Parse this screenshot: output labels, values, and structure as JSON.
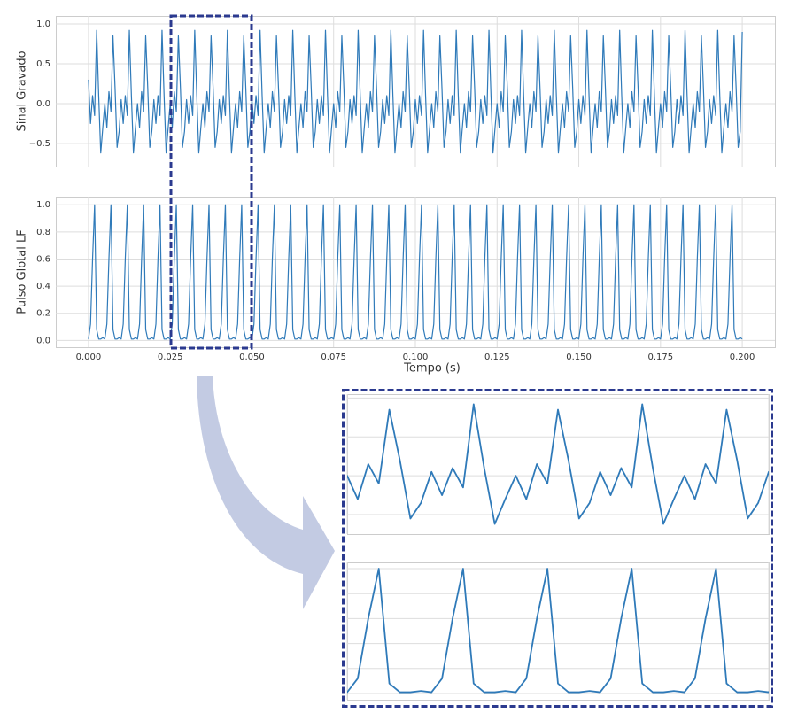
{
  "chart_data": {
    "type": "line",
    "grid": true,
    "xlabel": "Tempo (s)",
    "xlim": [
      -0.01,
      0.21
    ],
    "zoom_xlim": [
      0.025,
      0.05
    ],
    "xticks": [
      {
        "value": 0,
        "label": "0.000"
      },
      {
        "value": 0.025,
        "label": "0.025"
      },
      {
        "value": 0.05,
        "label": "0.050"
      },
      {
        "value": 0.075,
        "label": "0.075"
      },
      {
        "value": 0.1,
        "label": "0.100"
      },
      {
        "value": 0.125,
        "label": "0.125"
      },
      {
        "value": 0.15,
        "label": "0.150"
      },
      {
        "value": 0.175,
        "label": "0.175"
      },
      {
        "value": 0.2,
        "label": "0.200"
      }
    ],
    "x": [
      0,
      0.000625,
      0.00125,
      0.001875,
      0.0025,
      0.003125,
      0.00375,
      0.004375,
      0.005,
      0.005625,
      0.00625,
      0.006875,
      0.0075,
      0.008125,
      0.00875,
      0.009375,
      0.01,
      0.010625,
      0.01125,
      0.011875,
      0.0125,
      0.013125,
      0.01375,
      0.014375,
      0.015,
      0.015625,
      0.01625,
      0.016875,
      0.0175,
      0.018125,
      0.01875,
      0.019375,
      0.02,
      0.020625,
      0.02125,
      0.021875,
      0.0225,
      0.023125,
      0.02375,
      0.024375,
      0.025,
      0.025625,
      0.02625,
      0.026875,
      0.0275,
      0.028125,
      0.02875,
      0.029375,
      0.03,
      0.030625,
      0.03125,
      0.031875,
      0.0325,
      0.033125,
      0.03375,
      0.034375,
      0.035,
      0.035625,
      0.03625,
      0.036875,
      0.0375,
      0.038125,
      0.03875,
      0.039375,
      0.04,
      0.040625,
      0.04125,
      0.041875,
      0.0425,
      0.043125,
      0.04375,
      0.044375,
      0.045,
      0.045625,
      0.04625,
      0.046875,
      0.0475,
      0.048125,
      0.04875,
      0.049375,
      0.05,
      0.050625,
      0.05125,
      0.051875,
      0.0525,
      0.053125,
      0.05375,
      0.054375,
      0.055,
      0.055625,
      0.05625,
      0.056875,
      0.0575,
      0.058125,
      0.05875,
      0.059375,
      0.06,
      0.060625,
      0.06125,
      0.061875,
      0.0625,
      0.063125,
      0.06375,
      0.064375,
      0.065,
      0.065625,
      0.06625,
      0.066875,
      0.0675,
      0.068125,
      0.06875,
      0.069375,
      0.07,
      0.070625,
      0.07125,
      0.071875,
      0.0725,
      0.073125,
      0.07375,
      0.074375,
      0.075,
      0.075625,
      0.07625,
      0.076875,
      0.0775,
      0.078125,
      0.07875,
      0.079375,
      0.08,
      0.080625,
      0.08125,
      0.081875,
      0.0825,
      0.083125,
      0.08375,
      0.084375,
      0.085,
      0.085625,
      0.08625,
      0.086875,
      0.0875,
      0.088125,
      0.08875,
      0.089375,
      0.09,
      0.090625,
      0.09125,
      0.091875,
      0.0925,
      0.093125,
      0.09375,
      0.094375,
      0.095,
      0.095625,
      0.09625,
      0.096875,
      0.0975,
      0.098125,
      0.09875,
      0.099375,
      0.1,
      0.100625,
      0.10125,
      0.101875,
      0.1025,
      0.103125,
      0.10375,
      0.104375,
      0.105,
      0.105625,
      0.10625,
      0.106875,
      0.1075,
      0.108125,
      0.10875,
      0.109375,
      0.11,
      0.110625,
      0.11125,
      0.111875,
      0.1125,
      0.113125,
      0.11375,
      0.114375,
      0.115,
      0.115625,
      0.11625,
      0.116875,
      0.1175,
      0.118125,
      0.11875,
      0.119375,
      0.12,
      0.120625,
      0.12125,
      0.121875,
      0.1225,
      0.123125,
      0.12375,
      0.124375,
      0.125,
      0.125625,
      0.12625,
      0.126875,
      0.1275,
      0.128125,
      0.12875,
      0.129375,
      0.13,
      0.130625,
      0.13125,
      0.131875,
      0.1325,
      0.133125,
      0.13375,
      0.134375,
      0.135,
      0.135625,
      0.13625,
      0.136875,
      0.1375,
      0.138125,
      0.13875,
      0.139375,
      0.14,
      0.140625,
      0.14125,
      0.141875,
      0.1425,
      0.143125,
      0.14375,
      0.144375,
      0.145,
      0.145625,
      0.14625,
      0.146875,
      0.1475,
      0.148125,
      0.14875,
      0.149375,
      0.15,
      0.150625,
      0.15125,
      0.151875,
      0.1525,
      0.153125,
      0.15375,
      0.154375,
      0.155,
      0.155625,
      0.15625,
      0.156875,
      0.1575,
      0.158125,
      0.15875,
      0.159375,
      0.16,
      0.160625,
      0.16125,
      0.161875,
      0.1625,
      0.163125,
      0.16375,
      0.164375,
      0.165,
      0.165625,
      0.16625,
      0.166875,
      0.1675,
      0.168125,
      0.16875,
      0.169375,
      0.17,
      0.170625,
      0.17125,
      0.171875,
      0.1725,
      0.173125,
      0.17375,
      0.174375,
      0.175,
      0.175625,
      0.17625,
      0.176875,
      0.1775,
      0.178125,
      0.17875,
      0.179375,
      0.18,
      0.180625,
      0.18125,
      0.181875,
      0.1825,
      0.183125,
      0.18375,
      0.184375,
      0.185,
      0.185625,
      0.18625,
      0.186875,
      0.1875,
      0.188125,
      0.18875,
      0.189375,
      0.19,
      0.190625,
      0.19125,
      0.191875,
      0.1925,
      0.193125,
      0.19375,
      0.194375,
      0.195,
      0.195625,
      0.19625,
      0.196875,
      0.1975,
      0.198125,
      0.19875,
      0.199375,
      0.2
    ],
    "panels": [
      {
        "ylabel": "Sinal Gravado",
        "ylim": [
          -0.79,
          1.1
        ],
        "zoom_ylim": [
          -0.75,
          1.05
        ],
        "yticks": [
          {
            "value": -0.5,
            "label": "−0.5"
          },
          {
            "value": 0,
            "label": "0.0"
          },
          {
            "value": 0.5,
            "label": "0.5"
          },
          {
            "value": 1,
            "label": "1.0"
          }
        ],
        "series": [
          {
            "color": "#2f7ab9",
            "values": [
              0.3,
              -0.25,
              0.1,
              -0.15,
              0.92,
              0.1,
              -0.62,
              -0.3,
              0,
              -0.3,
              0.15,
              -0.1,
              0.85,
              0.2,
              -0.55,
              -0.35,
              0.05,
              -0.25,
              0.1,
              -0.15,
              0.92,
              0.1,
              -0.62,
              -0.3,
              0,
              -0.3,
              0.15,
              -0.1,
              0.85,
              0.2,
              -0.55,
              -0.35,
              0.05,
              -0.25,
              0.1,
              -0.15,
              0.92,
              0.1,
              -0.62,
              -0.3,
              0,
              -0.3,
              0.15,
              -0.1,
              0.85,
              0.2,
              -0.55,
              -0.35,
              0.05,
              -0.25,
              0.1,
              -0.15,
              0.92,
              0.1,
              -0.62,
              -0.3,
              0,
              -0.3,
              0.15,
              -0.1,
              0.85,
              0.2,
              -0.55,
              -0.35,
              0.05,
              -0.25,
              0.1,
              -0.15,
              0.92,
              0.1,
              -0.62,
              -0.3,
              0,
              -0.3,
              0.15,
              -0.1,
              0.85,
              0.2,
              -0.55,
              -0.35,
              0.05,
              -0.25,
              0.1,
              -0.15,
              0.92,
              0.1,
              -0.62,
              -0.3,
              0,
              -0.3,
              0.15,
              -0.1,
              0.85,
              0.2,
              -0.55,
              -0.35,
              0.05,
              -0.25,
              0.1,
              -0.15,
              0.92,
              0.1,
              -0.62,
              -0.3,
              0,
              -0.3,
              0.15,
              -0.1,
              0.85,
              0.2,
              -0.55,
              -0.35,
              0.05,
              -0.25,
              0.1,
              -0.15,
              0.92,
              0.1,
              -0.62,
              -0.3,
              0,
              -0.3,
              0.15,
              -0.1,
              0.85,
              0.2,
              -0.55,
              -0.35,
              0.05,
              -0.25,
              0.1,
              -0.15,
              0.92,
              0.1,
              -0.62,
              -0.3,
              0,
              -0.3,
              0.15,
              -0.1,
              0.85,
              0.2,
              -0.55,
              -0.35,
              0.05,
              -0.25,
              0.1,
              -0.15,
              0.92,
              0.1,
              -0.62,
              -0.3,
              0,
              -0.3,
              0.15,
              -0.1,
              0.85,
              0.2,
              -0.55,
              -0.35,
              0.05,
              -0.25,
              0.1,
              -0.15,
              0.92,
              0.1,
              -0.62,
              -0.3,
              0,
              -0.3,
              0.15,
              -0.1,
              0.85,
              0.2,
              -0.55,
              -0.35,
              0.05,
              -0.25,
              0.1,
              -0.15,
              0.92,
              0.1,
              -0.62,
              -0.3,
              0,
              -0.3,
              0.15,
              -0.1,
              0.85,
              0.2,
              -0.55,
              -0.35,
              0.05,
              -0.25,
              0.1,
              -0.15,
              0.92,
              0.1,
              -0.62,
              -0.3,
              0,
              -0.3,
              0.15,
              -0.1,
              0.85,
              0.2,
              -0.55,
              -0.35,
              0.05,
              -0.25,
              0.1,
              -0.15,
              0.92,
              0.1,
              -0.62,
              -0.3,
              0,
              -0.3,
              0.15,
              -0.1,
              0.85,
              0.2,
              -0.55,
              -0.35,
              0.05,
              -0.25,
              0.1,
              -0.15,
              0.92,
              0.1,
              -0.62,
              -0.3,
              0,
              -0.3,
              0.15,
              -0.1,
              0.85,
              0.2,
              -0.55,
              -0.35,
              0.05,
              -0.25,
              0.1,
              -0.15,
              0.92,
              0.1,
              -0.62,
              -0.3,
              0,
              -0.3,
              0.15,
              -0.1,
              0.85,
              0.2,
              -0.55,
              -0.35,
              0.05,
              -0.25,
              0.1,
              -0.15,
              0.92,
              0.1,
              -0.62,
              -0.3,
              0,
              -0.3,
              0.15,
              -0.1,
              0.85,
              0.2,
              -0.55,
              -0.35,
              0.05,
              -0.25,
              0.1,
              -0.15,
              0.92,
              0.1,
              -0.62,
              -0.3,
              0,
              -0.3,
              0.15,
              -0.1,
              0.85,
              0.2,
              -0.55,
              -0.35,
              0.05,
              -0.25,
              0.1,
              -0.15,
              0.92,
              0.1,
              -0.62,
              -0.3,
              0,
              -0.3,
              0.15,
              -0.1,
              0.85,
              0.2,
              -0.55,
              -0.35,
              0.05,
              -0.25,
              0.1,
              -0.15,
              0.92,
              0.1,
              -0.62,
              -0.3,
              0,
              -0.3,
              0.15,
              -0.1,
              0.85,
              0.2,
              -0.55,
              -0.35,
              0.9
            ]
          }
        ]
      },
      {
        "ylabel": "Pulso Glotal LF",
        "ylim": [
          -0.05,
          1.06
        ],
        "zoom_ylim": [
          -0.05,
          1.05
        ],
        "yticks": [
          {
            "value": 0,
            "label": "0.0"
          },
          {
            "value": 0.2,
            "label": "0.2"
          },
          {
            "value": 0.4,
            "label": "0.4"
          },
          {
            "value": 0.6,
            "label": "0.6"
          },
          {
            "value": 0.8,
            "label": "0.8"
          },
          {
            "value": 1,
            "label": "1.0"
          }
        ],
        "series": [
          {
            "color": "#2f7ab9",
            "values": [
              0.01,
              0.12,
              0.6,
              1,
              0.08,
              0.01,
              0.01,
              0.02,
              0.01,
              0.12,
              0.6,
              1,
              0.08,
              0.01,
              0.01,
              0.02,
              0.01,
              0.12,
              0.6,
              1,
              0.08,
              0.01,
              0.01,
              0.02,
              0.01,
              0.12,
              0.6,
              1,
              0.08,
              0.01,
              0.01,
              0.02,
              0.01,
              0.12,
              0.6,
              1,
              0.08,
              0.01,
              0.01,
              0.02,
              0.01,
              0.12,
              0.6,
              1,
              0.08,
              0.01,
              0.01,
              0.02,
              0.01,
              0.12,
              0.6,
              1,
              0.08,
              0.01,
              0.01,
              0.02,
              0.01,
              0.12,
              0.6,
              1,
              0.08,
              0.01,
              0.01,
              0.02,
              0.01,
              0.12,
              0.6,
              1,
              0.08,
              0.01,
              0.01,
              0.02,
              0.01,
              0.12,
              0.6,
              1,
              0.08,
              0.01,
              0.01,
              0.02,
              0.01,
              0.12,
              0.6,
              1,
              0.08,
              0.01,
              0.01,
              0.02,
              0.01,
              0.12,
              0.6,
              1,
              0.08,
              0.01,
              0.01,
              0.02,
              0.01,
              0.12,
              0.6,
              1,
              0.08,
              0.01,
              0.01,
              0.02,
              0.01,
              0.12,
              0.6,
              1,
              0.08,
              0.01,
              0.01,
              0.02,
              0.01,
              0.12,
              0.6,
              1,
              0.08,
              0.01,
              0.01,
              0.02,
              0.01,
              0.12,
              0.6,
              1,
              0.08,
              0.01,
              0.01,
              0.02,
              0.01,
              0.12,
              0.6,
              1,
              0.08,
              0.01,
              0.01,
              0.02,
              0.01,
              0.12,
              0.6,
              1,
              0.08,
              0.01,
              0.01,
              0.02,
              0.01,
              0.12,
              0.6,
              1,
              0.08,
              0.01,
              0.01,
              0.02,
              0.01,
              0.12,
              0.6,
              1,
              0.08,
              0.01,
              0.01,
              0.02,
              0.01,
              0.12,
              0.6,
              1,
              0.08,
              0.01,
              0.01,
              0.02,
              0.01,
              0.12,
              0.6,
              1,
              0.08,
              0.01,
              0.01,
              0.02,
              0.01,
              0.12,
              0.6,
              1,
              0.08,
              0.01,
              0.01,
              0.02,
              0.01,
              0.12,
              0.6,
              1,
              0.08,
              0.01,
              0.01,
              0.02,
              0.01,
              0.12,
              0.6,
              1,
              0.08,
              0.01,
              0.01,
              0.02,
              0.01,
              0.12,
              0.6,
              1,
              0.08,
              0.01,
              0.01,
              0.02,
              0.01,
              0.12,
              0.6,
              1,
              0.08,
              0.01,
              0.01,
              0.02,
              0.01,
              0.12,
              0.6,
              1,
              0.08,
              0.01,
              0.01,
              0.02,
              0.01,
              0.12,
              0.6,
              1,
              0.08,
              0.01,
              0.01,
              0.02,
              0.01,
              0.12,
              0.6,
              1,
              0.08,
              0.01,
              0.01,
              0.02,
              0.01,
              0.12,
              0.6,
              1,
              0.08,
              0.01,
              0.01,
              0.02,
              0.01,
              0.12,
              0.6,
              1,
              0.08,
              0.01,
              0.01,
              0.02,
              0.01,
              0.12,
              0.6,
              1,
              0.08,
              0.01,
              0.01,
              0.02,
              0.01,
              0.12,
              0.6,
              1,
              0.08,
              0.01,
              0.01,
              0.02,
              0.01,
              0.12,
              0.6,
              1,
              0.08,
              0.01,
              0.01,
              0.02,
              0.01,
              0.12,
              0.6,
              1,
              0.08,
              0.01,
              0.01,
              0.02,
              0.01,
              0.12,
              0.6,
              1,
              0.08,
              0.01,
              0.01,
              0.02,
              0.01,
              0.12,
              0.6,
              1,
              0.08,
              0.01,
              0.01,
              0.02,
              0.01,
              0.12,
              0.6,
              1,
              0.08,
              0.01,
              0.01,
              0.02,
              0.01,
              0.12,
              0.6,
              1,
              0.08,
              0.01,
              0.01,
              0.02,
              0.01
            ]
          }
        ]
      }
    ]
  }
}
